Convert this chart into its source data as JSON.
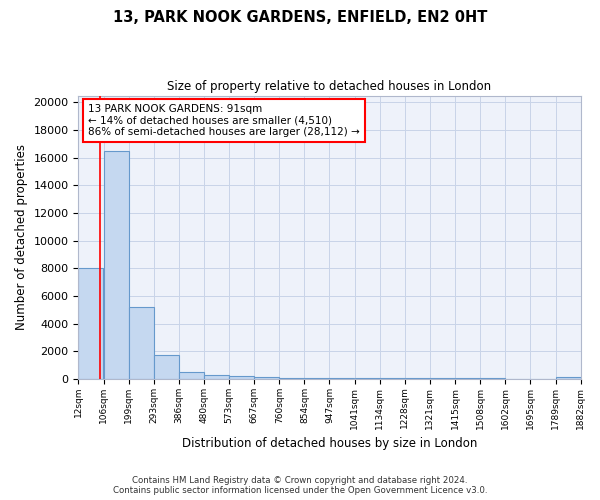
{
  "title1": "13, PARK NOOK GARDENS, ENFIELD, EN2 0HT",
  "title2": "Size of property relative to detached houses in London",
  "xlabel": "Distribution of detached houses by size in London",
  "ylabel": "Number of detached properties",
  "annotation_line1": "13 PARK NOOK GARDENS: 91sqm",
  "annotation_line2": "← 14% of detached houses are smaller (4,510)",
  "annotation_line3": "86% of semi-detached houses are larger (28,112) →",
  "property_sqm": 91,
  "bar_left_edges": [
    12,
    106,
    199,
    293,
    386,
    480,
    573,
    667,
    760,
    854,
    947,
    1041,
    1134,
    1228,
    1321,
    1415,
    1508,
    1602,
    1695,
    1789
  ],
  "bar_heights": [
    8000,
    16500,
    5200,
    1750,
    500,
    300,
    200,
    150,
    100,
    80,
    70,
    60,
    50,
    45,
    40,
    35,
    30,
    25,
    20,
    150
  ],
  "bin_width": 93,
  "bar_color": "#c5d8f0",
  "bar_edge_color": "#6699cc",
  "red_line_x": 91,
  "grid_color": "#c8d4e8",
  "background_color": "#eef2fa",
  "footer_text": "Contains HM Land Registry data © Crown copyright and database right 2024.\nContains public sector information licensed under the Open Government Licence v3.0.",
  "tick_labels": [
    "12sqm",
    "106sqm",
    "199sqm",
    "293sqm",
    "386sqm",
    "480sqm",
    "573sqm",
    "667sqm",
    "760sqm",
    "854sqm",
    "947sqm",
    "1041sqm",
    "1134sqm",
    "1228sqm",
    "1321sqm",
    "1415sqm",
    "1508sqm",
    "1602sqm",
    "1695sqm",
    "1789sqm",
    "1882sqm"
  ],
  "ylim": [
    0,
    20500
  ],
  "yticks": [
    0,
    2000,
    4000,
    6000,
    8000,
    10000,
    12000,
    14000,
    16000,
    18000,
    20000
  ]
}
